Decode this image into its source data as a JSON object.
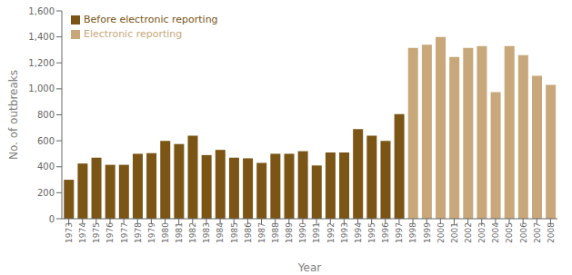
{
  "chart_data": {
    "type": "bar",
    "xlabel": "Year",
    "ylabel": "No. of outbreaks",
    "categories": [
      1973,
      1974,
      1975,
      1976,
      1977,
      1978,
      1979,
      1980,
      1981,
      1982,
      1983,
      1984,
      1985,
      1986,
      1987,
      1988,
      1989,
      1990,
      1991,
      1992,
      1993,
      1994,
      1995,
      1996,
      1997,
      1998,
      1999,
      2000,
      2001,
      2002,
      2003,
      2004,
      2005,
      2006,
      2007,
      2008
    ],
    "series": [
      {
        "name": "Before electronic reporting",
        "color": "#7A5515",
        "values": [
          300,
          425,
          470,
          415,
          415,
          500,
          505,
          600,
          575,
          640,
          490,
          530,
          470,
          465,
          430,
          500,
          500,
          520,
          410,
          510,
          510,
          690,
          640,
          600,
          805,
          null,
          null,
          null,
          null,
          null,
          null,
          null,
          null,
          null,
          null,
          null
        ]
      },
      {
        "name": "Electronic reporting",
        "color": "#C8A87A",
        "values": [
          null,
          null,
          null,
          null,
          null,
          null,
          null,
          null,
          null,
          null,
          null,
          null,
          null,
          null,
          null,
          null,
          null,
          null,
          null,
          null,
          null,
          null,
          null,
          null,
          null,
          1315,
          1340,
          1400,
          1245,
          1315,
          1330,
          975,
          1330,
          1260,
          1100,
          1030
        ]
      }
    ],
    "ylim": [
      0,
      1600
    ],
    "yticks": [
      0,
      200,
      400,
      600,
      800,
      {
        "value": 1000,
        "label": "1,000"
      },
      {
        "value": 1200,
        "label": "1,200"
      },
      {
        "value": 1400,
        "label": "1,400"
      },
      {
        "value": 1600,
        "label": "1,600"
      }
    ],
    "stacked": true,
    "grid": false,
    "legend": "upper left"
  }
}
